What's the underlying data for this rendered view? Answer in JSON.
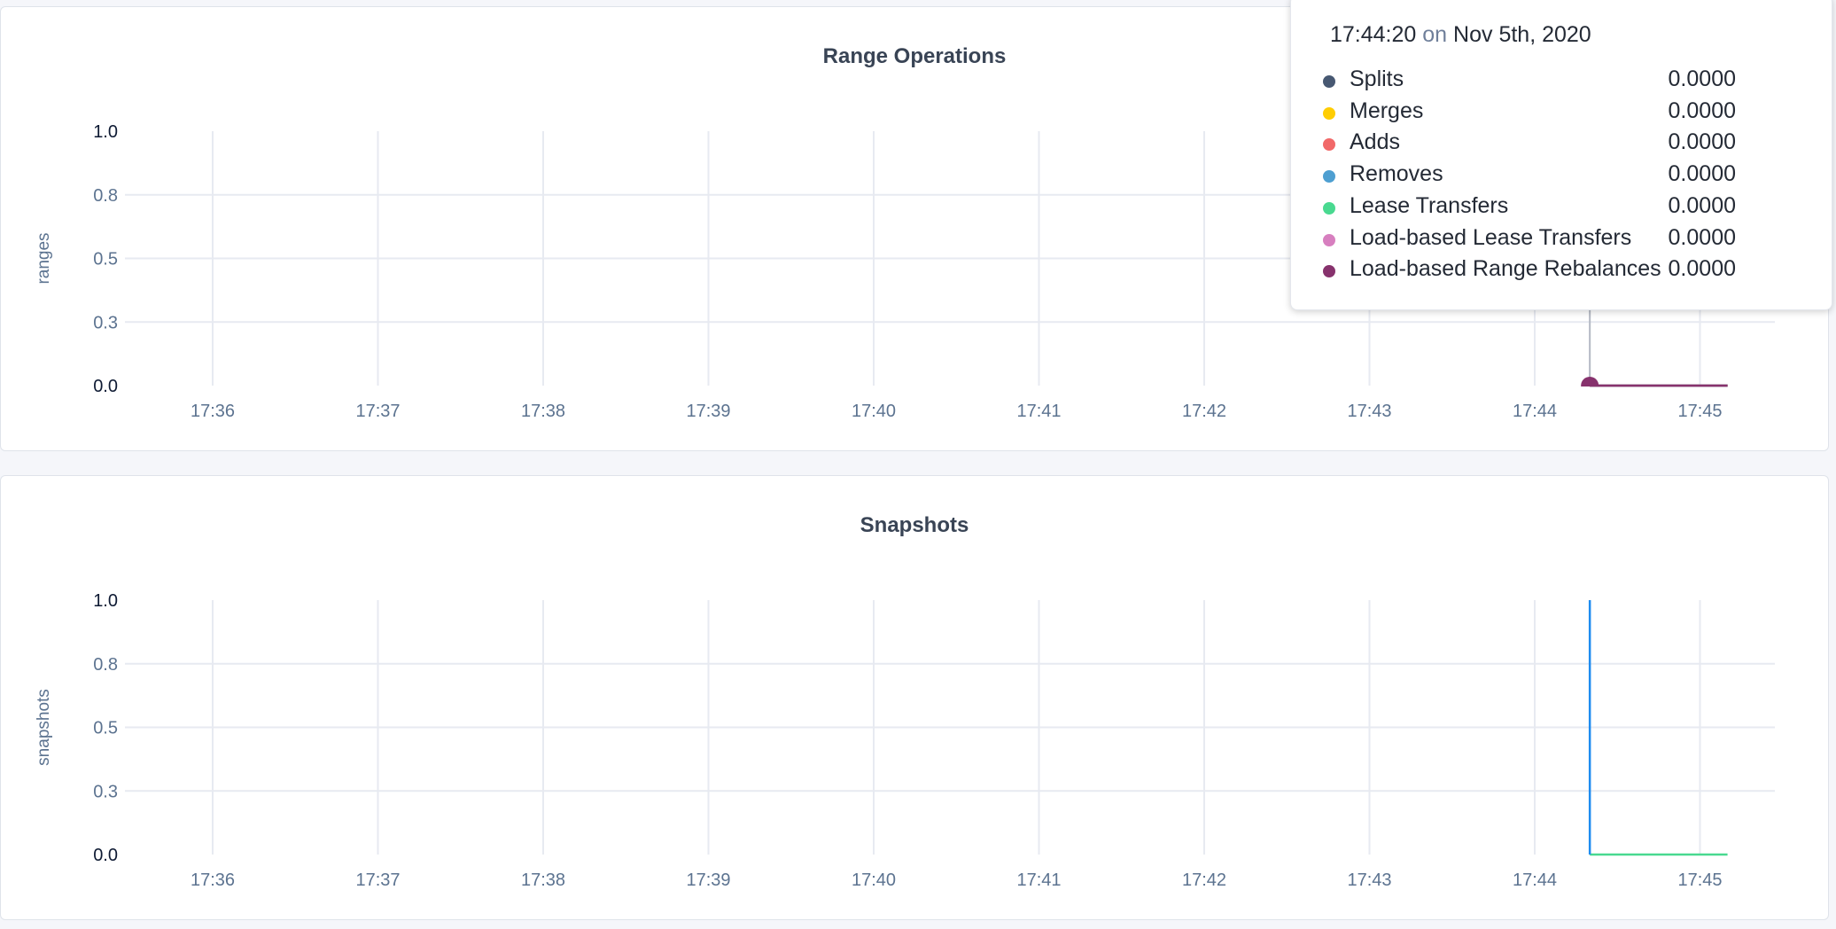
{
  "chart_data": [
    {
      "type": "line",
      "title": "Range Operations",
      "ylabel": "ranges",
      "xlabel": "",
      "ylim": [
        0,
        1
      ],
      "yticks": [
        0,
        0.25,
        0.5,
        0.75,
        1
      ],
      "ytick_labels": [
        "0.0",
        "0.3",
        "0.5",
        "0.8",
        "1.0"
      ],
      "xtick_labels": [
        "17:36",
        "17:37",
        "17:38",
        "17:39",
        "17:40",
        "17:41",
        "17:42",
        "17:43",
        "17:44",
        "17:45"
      ],
      "grid": true,
      "series": [
        {
          "name": "Splits",
          "color": "#475872",
          "points": [
            [
              "17:44:20",
              0
            ],
            [
              "17:45:10",
              0
            ]
          ]
        },
        {
          "name": "Merges",
          "color": "#ffcd02",
          "points": [
            [
              "17:44:20",
              0
            ],
            [
              "17:45:10",
              0
            ]
          ]
        },
        {
          "name": "Adds",
          "color": "#f16969",
          "points": [
            [
              "17:44:20",
              0
            ],
            [
              "17:45:10",
              0
            ]
          ]
        },
        {
          "name": "Removes",
          "color": "#4e9fd1",
          "points": [
            [
              "17:44:20",
              0
            ],
            [
              "17:45:10",
              0
            ]
          ]
        },
        {
          "name": "Lease Transfers",
          "color": "#49d990",
          "points": [
            [
              "17:44:20",
              0
            ],
            [
              "17:45:10",
              0
            ]
          ]
        },
        {
          "name": "Load-based Lease Transfers",
          "color": "#d77fbf",
          "points": [
            [
              "17:44:20",
              0
            ],
            [
              "17:45:10",
              0
            ]
          ]
        },
        {
          "name": "Load-based Range Rebalances",
          "color": "#87326d",
          "points": [
            [
              "17:44:20",
              0
            ],
            [
              "17:45:10",
              0
            ]
          ]
        }
      ],
      "hover": {
        "time": "17:44:20",
        "on": "on",
        "date": "Nov 5th, 2020",
        "values": [
          "0.0000",
          "0.0000",
          "0.0000",
          "0.0000",
          "0.0000",
          "0.0000",
          "0.0000"
        ]
      }
    },
    {
      "type": "line",
      "title": "Snapshots",
      "ylabel": "snapshots",
      "xlabel": "",
      "ylim": [
        0,
        1
      ],
      "yticks": [
        0,
        0.25,
        0.5,
        0.75,
        1
      ],
      "ytick_labels": [
        "0.0",
        "0.3",
        "0.5",
        "0.8",
        "1.0"
      ],
      "xtick_labels": [
        "17:36",
        "17:37",
        "17:38",
        "17:39",
        "17:40",
        "17:41",
        "17:42",
        "17:43",
        "17:44",
        "17:45"
      ],
      "grid": true,
      "series": [
        {
          "color": "#49d990",
          "points": [
            [
              "17:44:20",
              0
            ],
            [
              "17:45:10",
              0
            ]
          ]
        },
        {
          "color": "#1f8cf0",
          "points": [
            [
              "17:44:20",
              1
            ],
            [
              "17:44:20",
              0
            ]
          ]
        }
      ]
    }
  ]
}
